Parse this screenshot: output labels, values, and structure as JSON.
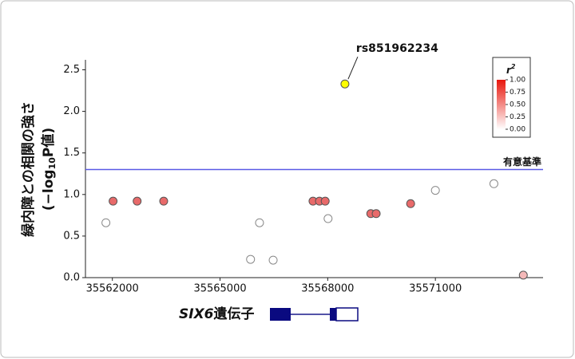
{
  "chart_data": {
    "type": "scatter",
    "x": [
      35561820,
      35562020,
      35562690,
      35563430,
      35565850,
      35566100,
      35566480,
      35567590,
      35567770,
      35567930,
      35568010,
      35568480,
      35569200,
      35569350,
      35570310,
      35571000,
      35572630,
      35573450
    ],
    "values": [
      0.66,
      0.92,
      0.92,
      0.92,
      0.22,
      0.66,
      0.21,
      0.92,
      0.92,
      0.92,
      0.71,
      2.33,
      0.77,
      0.77,
      0.89,
      1.05,
      1.13,
      0.03
    ],
    "colors": [
      "#ffffff",
      "#e86a6a",
      "#e86a6a",
      "#e86a6a",
      "#ffffff",
      "#ffffff",
      "#ffffff",
      "#e86a6a",
      "#e86a6a",
      "#e86a6a",
      "#ffffff",
      "#ffff00",
      "#e86a6a",
      "#e86a6a",
      "#e86a6a",
      "#ffffff",
      "#ffffff",
      "#f4b8b8"
    ],
    "xlim": [
      35561250,
      35574000
    ],
    "ylim": [
      0,
      2.62
    ],
    "xticks": [
      35562000,
      35565000,
      35568000,
      35571000
    ],
    "yticks": [
      {
        "value": 0,
        "label": "0.0"
      },
      {
        "value": 0.5,
        "label": "0.5"
      },
      {
        "value": 1,
        "label": "1.0"
      },
      {
        "value": 1.5,
        "label": "1.5"
      },
      {
        "value": 2,
        "label": "2.0"
      },
      {
        "value": 2.5,
        "label": "2.5"
      }
    ],
    "y_label": "緑内障との相関の強さ",
    "y_label2_parts": [
      "(−log",
      "10",
      "P値)"
    ],
    "threshold": {
      "value": 1.3,
      "label": "有意基準",
      "color": "#5a5ae6"
    },
    "annotation": {
      "label": "rs851962234",
      "point": 11
    },
    "colorbar": {
      "title": "r",
      "title_sup": "2",
      "range": [
        0,
        1
      ],
      "colors": [
        "#ffffff",
        "#e8160c"
      ],
      "ticks": [
        {
          "value": 0,
          "label": "0.00"
        },
        {
          "value": 0.25,
          "label": "0.25"
        },
        {
          "value": 0.5,
          "label": "0.50"
        },
        {
          "value": 0.75,
          "label": "0.75"
        },
        {
          "value": 1,
          "label": "1.00"
        }
      ]
    },
    "gene": {
      "name": "SIX6",
      "suffix": "遺伝子"
    }
  }
}
